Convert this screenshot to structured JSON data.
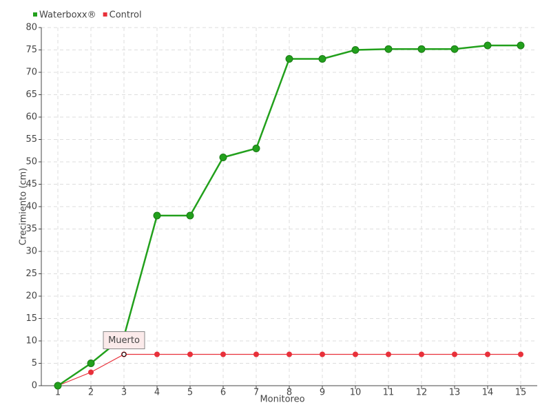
{
  "chart_data": {
    "type": "line",
    "x_label": "Monitoreo",
    "y_label": "Crecimiento (cm)",
    "categories": [
      "1",
      "2",
      "3",
      "4",
      "5",
      "6",
      "7",
      "8",
      "9",
      "10",
      "11",
      "12",
      "13",
      "14",
      "15"
    ],
    "series": [
      {
        "name": "Waterboxx®",
        "color": "#22a01c",
        "values": [
          0,
          5,
          11,
          38,
          38,
          51,
          53,
          73,
          73,
          75,
          75.2,
          75.2,
          75.2,
          76,
          76
        ]
      },
      {
        "name": "Control",
        "color": "#e8303a",
        "values": [
          0,
          3,
          7,
          7,
          7,
          7,
          7,
          7,
          7,
          7,
          7,
          7,
          7,
          7,
          7
        ]
      }
    ],
    "annotation": "Muerto",
    "ylim": [
      0,
      80
    ],
    "yticks": [
      0,
      5,
      10,
      15,
      20,
      25,
      30,
      35,
      40,
      45,
      50,
      55,
      60,
      65,
      70,
      75,
      80
    ],
    "grid": true,
    "legend": "top-left"
  }
}
